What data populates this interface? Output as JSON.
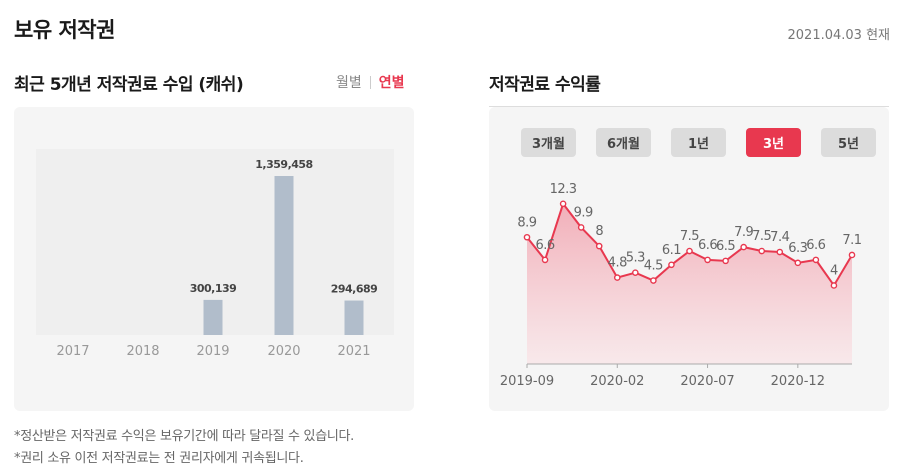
{
  "header": {
    "title": "보유 저작권",
    "as_of": "2021.04.03 현재"
  },
  "left_section": {
    "title": "최근 5개년 저작권료 수입 (캐쉬)",
    "toggle": {
      "monthly": "월별",
      "yearly": "연별"
    }
  },
  "right_section": {
    "title": "저작권료 수익률",
    "periods": [
      {
        "label": "3개월",
        "active": false
      },
      {
        "label": "6개월",
        "active": false
      },
      {
        "label": "1년",
        "active": false
      },
      {
        "label": "3년",
        "active": true
      },
      {
        "label": "5년",
        "active": false
      }
    ]
  },
  "notes": [
    "*정산받은 저작권료 수익은 보유기간에 따라 달라질 수 있습니다.",
    "*권리 소유 이전 저작권료는 전 권리자에게 귀속됩니다."
  ],
  "chart_data": [
    {
      "type": "bar",
      "categories": [
        "2017",
        "2018",
        "2019",
        "2020",
        "2021"
      ],
      "values": [
        null,
        null,
        300139,
        1359458,
        294689
      ],
      "value_labels": [
        "",
        "",
        "300,139",
        "1,359,458",
        "294,689"
      ],
      "ylim": [
        0,
        1359458
      ],
      "colors": {
        "bar": "#b1bdcb"
      }
    },
    {
      "type": "area",
      "x": [
        "2019-09",
        "2019-10",
        "2019-11",
        "2019-12",
        "2020-01",
        "2020-02",
        "2020-03",
        "2020-04",
        "2020-05",
        "2020-06",
        "2020-07",
        "2020-08",
        "2020-09",
        "2020-10",
        "2020-11",
        "2020-12",
        "2021-01",
        "2021-02",
        "2021-03"
      ],
      "values": [
        8.9,
        6.6,
        12.3,
        9.9,
        8,
        4.8,
        5.3,
        4.5,
        6.1,
        7.5,
        6.6,
        6.5,
        7.9,
        7.5,
        7.4,
        6.3,
        6.6,
        4,
        7.1
      ],
      "value_labels": [
        "8.9",
        "6.6",
        "12.3",
        "9.9",
        "8",
        "4.8",
        "5.3",
        "4.5",
        "6.1",
        "7.5",
        "6.6",
        "6.5",
        "7.9",
        "7.5",
        "7.4",
        "6.3",
        "6.6",
        "4",
        "7.1"
      ],
      "x_tick_labels": [
        "2019-09",
        "2020-02",
        "2020-07",
        "2020-12"
      ],
      "colors": {
        "line": "#e8384f",
        "fill_top": "#f1a7b2",
        "fill_bottom": "#f9e3e6"
      }
    }
  ]
}
